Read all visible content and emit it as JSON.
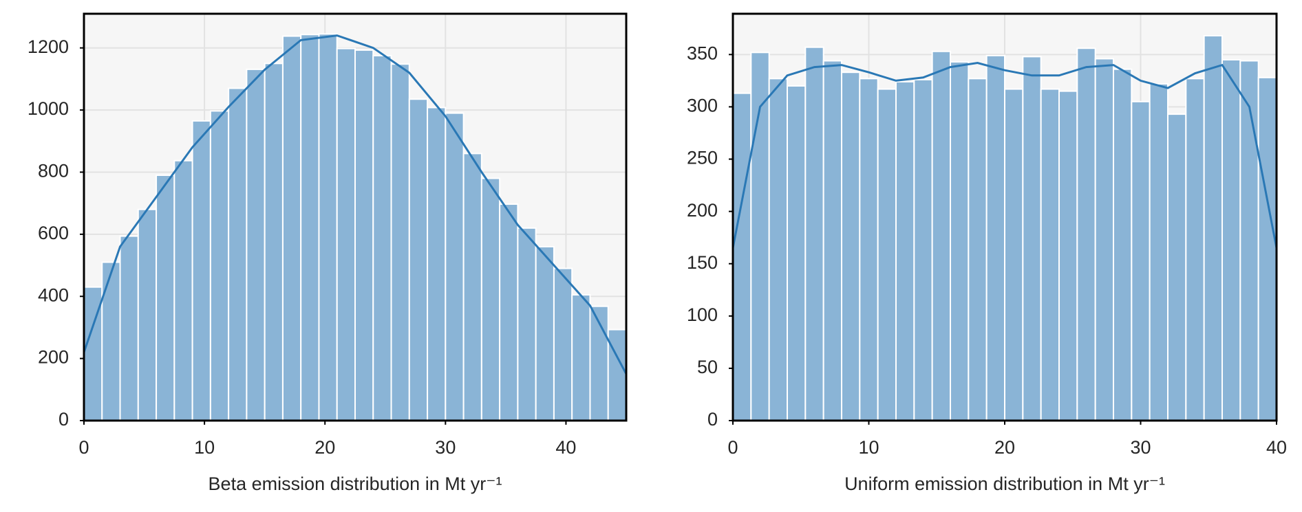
{
  "chart_data": [
    {
      "type": "histogram",
      "xlabel": "Beta emission distribution in Mt yr⁻¹",
      "bins": [
        0,
        1.5,
        3,
        4.5,
        6,
        7.5,
        9,
        10.5,
        12,
        13.5,
        15,
        16.5,
        18,
        19.5,
        21,
        22.5,
        24,
        25.5,
        27,
        28.5,
        30,
        31.5,
        33,
        34.5,
        36,
        37.5,
        39,
        40.5,
        42,
        43.5,
        45
      ],
      "values": [
        430,
        510,
        594,
        680,
        790,
        837,
        965,
        997,
        1070,
        1131,
        1150,
        1238,
        1243,
        1245,
        1198,
        1193,
        1175,
        1148,
        1035,
        1008,
        990,
        860,
        780,
        697,
        620,
        560,
        490,
        405,
        368,
        293
      ],
      "color": "#8ab4d6",
      "edgecolor": "#ffffff",
      "kde": {
        "x": [
          0,
          3,
          6,
          9,
          12,
          15,
          18,
          21,
          24,
          27,
          30,
          33,
          36,
          39,
          42,
          45
        ],
        "y": [
          220,
          560,
          720,
          880,
          1010,
          1130,
          1225,
          1240,
          1200,
          1120,
          980,
          800,
          630,
          500,
          370,
          150
        ],
        "color": "#2a78b5"
      },
      "xlim": [
        0,
        45
      ],
      "ylim": [
        0,
        1310
      ],
      "xticks": [
        0,
        10,
        20,
        30,
        40
      ],
      "yticks": [
        0,
        200,
        400,
        600,
        800,
        1000,
        1200
      ],
      "grid": true
    },
    {
      "type": "histogram",
      "xlabel": "Uniform emission distribution in Mt yr⁻¹",
      "bins": [
        0,
        1.3333,
        2.6667,
        4,
        5.3333,
        6.6667,
        8,
        9.3333,
        10.6667,
        12,
        13.3333,
        14.6667,
        16,
        17.3333,
        18.6667,
        20,
        21.3333,
        22.6667,
        24,
        25.3333,
        26.6667,
        28,
        29.3333,
        30.6667,
        32,
        33.3333,
        34.6667,
        36,
        37.3333,
        38.6667,
        40
      ],
      "values": [
        313,
        352,
        327,
        320,
        357,
        344,
        333,
        327,
        317,
        324,
        326,
        353,
        343,
        327,
        349,
        317,
        348,
        317,
        315,
        356,
        346,
        336,
        305,
        322,
        293,
        327,
        368,
        345,
        344,
        328
      ],
      "color": "#8ab4d6",
      "edgecolor": "#ffffff",
      "kde": {
        "x": [
          0,
          2,
          4,
          6,
          8,
          10,
          12,
          14,
          16,
          18,
          20,
          22,
          24,
          26,
          28,
          30,
          32,
          34,
          36,
          38,
          40
        ],
        "y": [
          165,
          300,
          330,
          338,
          340,
          333,
          325,
          328,
          338,
          342,
          335,
          330,
          330,
          338,
          340,
          325,
          318,
          332,
          340,
          300,
          165
        ],
        "color": "#2a78b5"
      },
      "xlim": [
        0,
        40
      ],
      "ylim": [
        0,
        389
      ],
      "xticks": [
        0,
        10,
        20,
        30,
        40
      ],
      "yticks": [
        0,
        50,
        100,
        150,
        200,
        250,
        300,
        350
      ],
      "grid": true
    }
  ]
}
